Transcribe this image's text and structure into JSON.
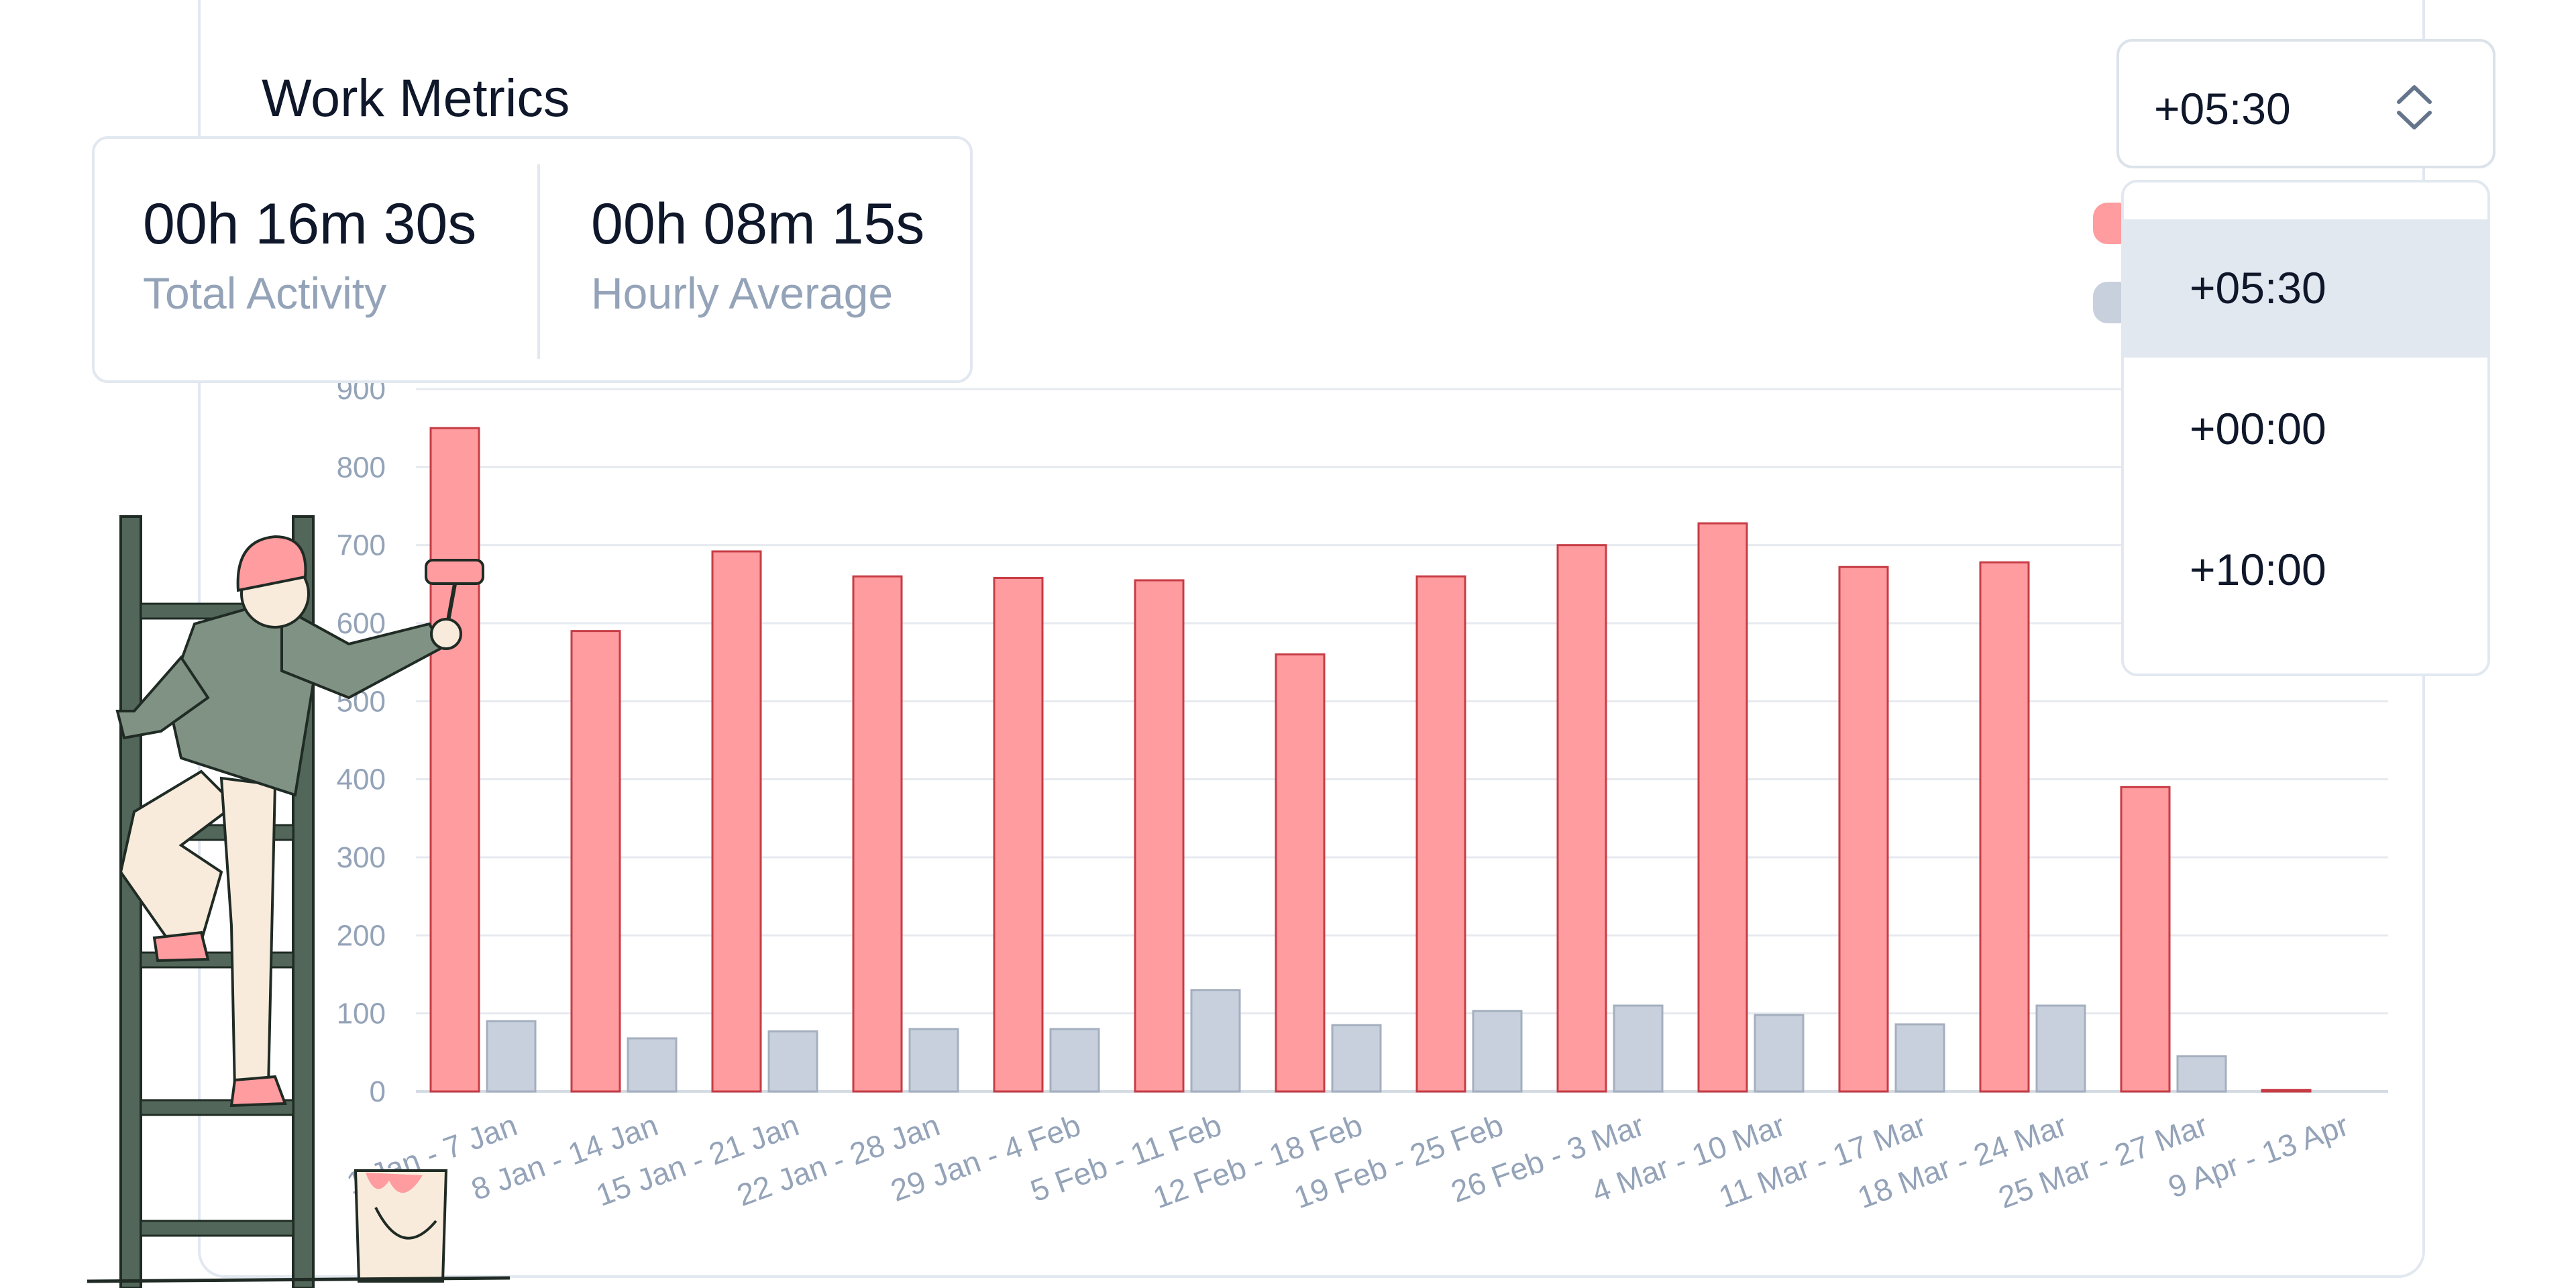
{
  "header": {
    "title": "Work Metrics"
  },
  "stats": [
    {
      "value": "00h 16m 30s",
      "label": "Total Activity"
    },
    {
      "value": "00h 08m 15s",
      "label": "Hourly Average"
    }
  ],
  "timezone": {
    "selected": "+05:30",
    "options": [
      "+05:30",
      "+00:00",
      "+10:00"
    ]
  },
  "colors": {
    "primary": "#fe9c9f",
    "primary_border": "#c73c45",
    "secondary": "#c7d0dc",
    "secondary_border": "#a4afbf"
  },
  "chart_data": {
    "type": "bar",
    "title": "",
    "xlabel": "",
    "ylabel": "",
    "ylim": [
      0,
      900
    ],
    "yticks": [
      0,
      100,
      200,
      300,
      400,
      500,
      600,
      700,
      800,
      900
    ],
    "grid": true,
    "categories": [
      "1 Jan - 7 Jan",
      "8 Jan - 14 Jan",
      "15 Jan - 21 Jan",
      "22 Jan - 28 Jan",
      "29 Jan - 4 Feb",
      "5 Feb - 11 Feb",
      "12 Feb - 18 Feb",
      "19 Feb - 25 Feb",
      "26 Feb - 3 Mar",
      "4 Mar - 10 Mar",
      "11 Mar - 17 Mar",
      "18 Mar - 24 Mar",
      "25 Mar - 27 Mar",
      "9 Apr - 13 Apr"
    ],
    "series": [
      {
        "color": "#fe9c9f",
        "values": [
          850,
          590,
          692,
          660,
          658,
          655,
          560,
          660,
          700,
          728,
          672,
          678,
          390,
          2
        ]
      },
      {
        "color": "#c7d0dc",
        "values": [
          90,
          68,
          77,
          80,
          80,
          130,
          85,
          103,
          110,
          98,
          86,
          110,
          45,
          0
        ]
      }
    ]
  }
}
